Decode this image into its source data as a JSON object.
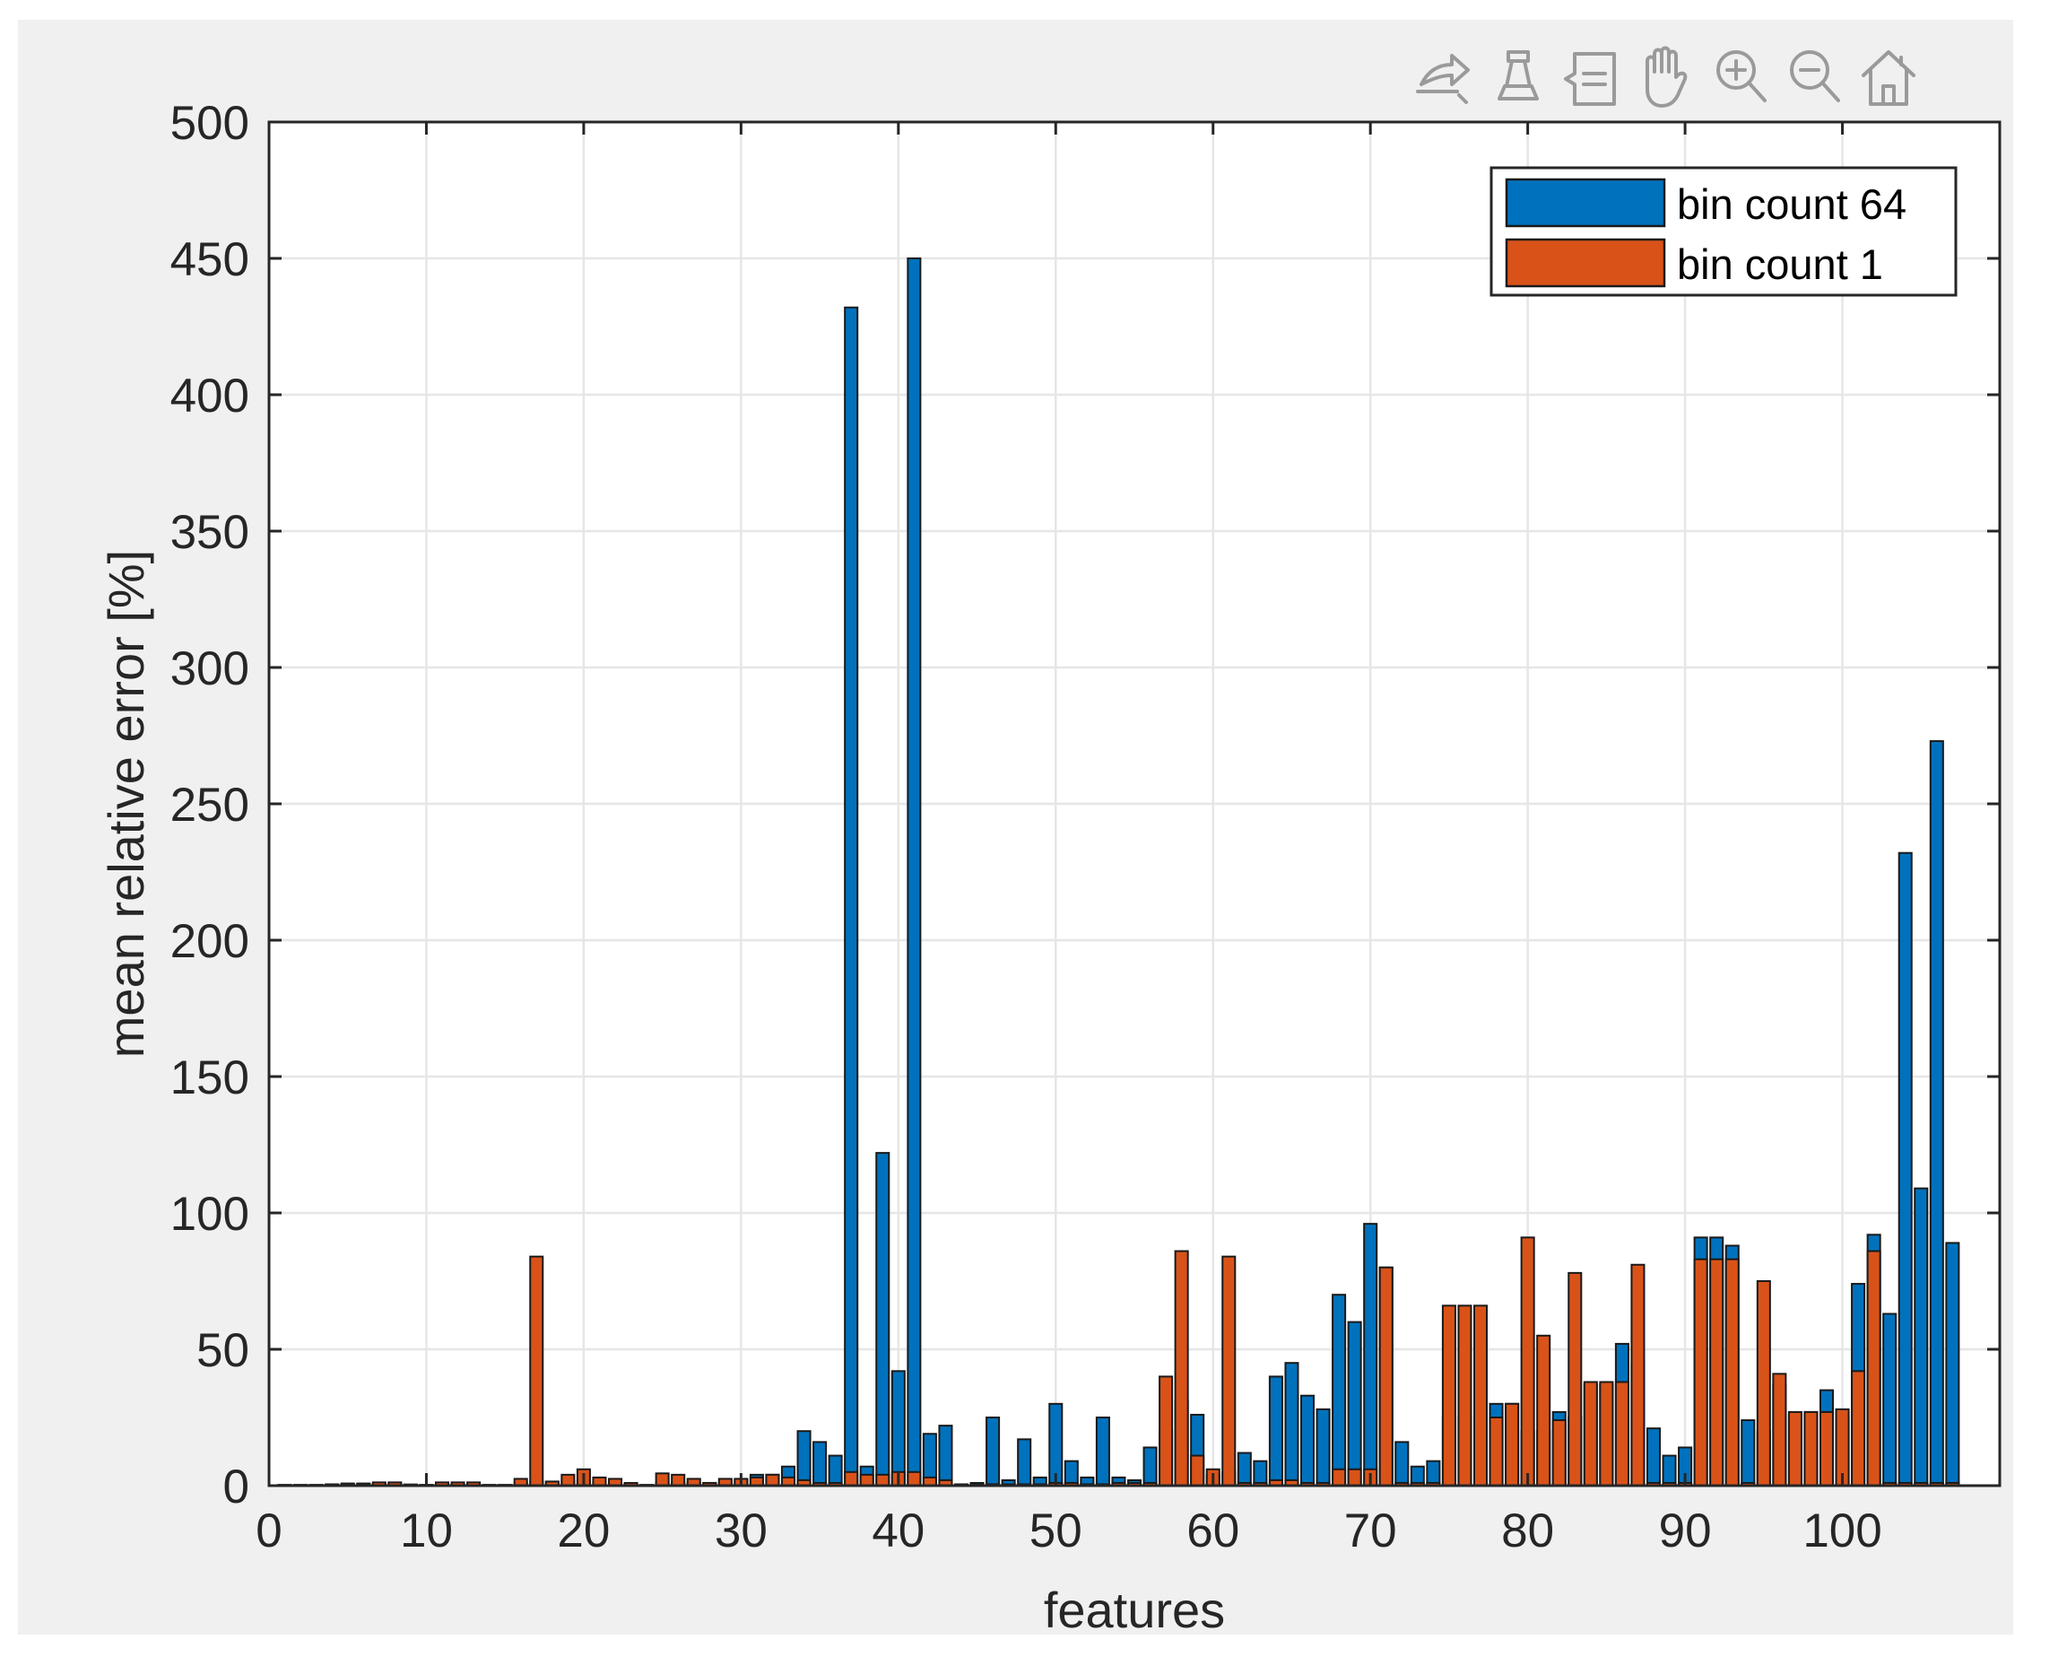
{
  "toolbar": {
    "icons": [
      "edit-plot-icon",
      "brush-icon",
      "data-tips-icon",
      "pan-hand-icon",
      "zoom-in-icon",
      "zoom-out-icon",
      "home-icon"
    ]
  },
  "chart_data": {
    "type": "bar",
    "xlabel": "features",
    "ylabel": "mean relative error [%]",
    "xlim": [
      0,
      110
    ],
    "ylim": [
      0,
      500
    ],
    "xticks": [
      0,
      10,
      20,
      30,
      40,
      50,
      60,
      70,
      80,
      90,
      100
    ],
    "yticks": [
      0,
      50,
      100,
      150,
      200,
      250,
      300,
      350,
      400,
      450,
      500
    ],
    "grid": true,
    "legend_location": "top-right",
    "overlay": true,
    "x": [
      1,
      2,
      3,
      4,
      5,
      6,
      7,
      8,
      9,
      10,
      11,
      12,
      13,
      14,
      15,
      16,
      17,
      18,
      19,
      20,
      21,
      22,
      23,
      24,
      25,
      26,
      27,
      28,
      29,
      30,
      31,
      32,
      33,
      34,
      35,
      36,
      37,
      38,
      39,
      40,
      41,
      42,
      43,
      44,
      45,
      46,
      47,
      48,
      49,
      50,
      51,
      52,
      53,
      54,
      55,
      56,
      57,
      58,
      59,
      60,
      61,
      62,
      63,
      64,
      65,
      66,
      67,
      68,
      69,
      70,
      71,
      72,
      73,
      74,
      75,
      76,
      77,
      78,
      79,
      80,
      81,
      82,
      83,
      84,
      85,
      86,
      87,
      88,
      89,
      90,
      91,
      92,
      93,
      94,
      95,
      96,
      97,
      98,
      99,
      100,
      101,
      102,
      103,
      104,
      105,
      106,
      107
    ],
    "series": [
      {
        "name": "bin count 64",
        "color": "#0072BD",
        "values": [
          0.3,
          0.3,
          0.3,
          0.5,
          0.8,
          0.8,
          0.7,
          0.7,
          0.4,
          0.3,
          0.5,
          0.5,
          0.5,
          0.3,
          0.3,
          0.8,
          1.5,
          1.5,
          1.6,
          2.0,
          1.2,
          1.0,
          0.8,
          0.3,
          1.0,
          1.0,
          1.0,
          1.0,
          1.5,
          2.0,
          4,
          4,
          7,
          20,
          16,
          11,
          432,
          7,
          122,
          42,
          450,
          19,
          22,
          0.5,
          1,
          25,
          2,
          17,
          3,
          30,
          9,
          3,
          25,
          3,
          2,
          14,
          20,
          31,
          26,
          4,
          5,
          12,
          9,
          40,
          45,
          33,
          28,
          70,
          60,
          96,
          80,
          16,
          7,
          9,
          25,
          25,
          25,
          30,
          30,
          20,
          20,
          27,
          25,
          37,
          37,
          52,
          45,
          21,
          11,
          14,
          91,
          91,
          88,
          24,
          20,
          37,
          26,
          27,
          35,
          25,
          74,
          92,
          63,
          232,
          109,
          273,
          89
        ]
      },
      {
        "name": "bin count 1",
        "color": "#D95319",
        "values": [
          0.2,
          0.2,
          0.2,
          0.3,
          0.5,
          0.5,
          1.2,
          1.2,
          0.4,
          0.2,
          1.2,
          1.2,
          1.2,
          0.2,
          0.2,
          2.5,
          84,
          1.5,
          4,
          6,
          3,
          2.5,
          1,
          0.2,
          4.5,
          4,
          2.5,
          1,
          2.5,
          2.5,
          3,
          4,
          3,
          2,
          1,
          1,
          5,
          4,
          4,
          5,
          5,
          3,
          2,
          0.2,
          0.3,
          0.5,
          0.5,
          0.5,
          0.5,
          1,
          1,
          0.5,
          0.5,
          1,
          1,
          1,
          40,
          86,
          11,
          6,
          84,
          1,
          1,
          2,
          2,
          1,
          1,
          6,
          6,
          6,
          80,
          1,
          1,
          1,
          66,
          66,
          66,
          25,
          30,
          91,
          55,
          24,
          78,
          38,
          38,
          38,
          81,
          1,
          1,
          1,
          83,
          83,
          83,
          1,
          75,
          41,
          27,
          27,
          27,
          28,
          42,
          86,
          1,
          1,
          1,
          1,
          1
        ]
      }
    ]
  }
}
